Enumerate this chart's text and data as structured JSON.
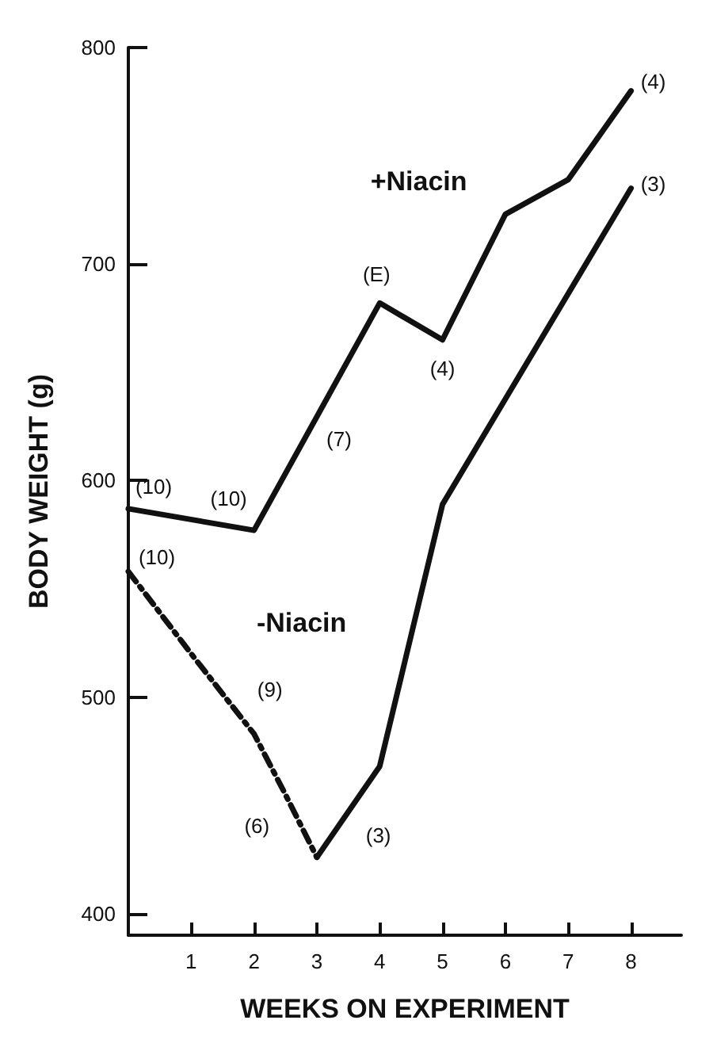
{
  "chart_data": {
    "type": "line",
    "xlabel": "WEEKS ON EXPERIMENT",
    "ylabel": "BODY WEIGHT (g)",
    "xlim": [
      0,
      8.8
    ],
    "xticks": [
      1,
      2,
      3,
      4,
      5,
      6,
      7,
      8
    ],
    "ylim": [
      390,
      800
    ],
    "yticks": [
      400,
      500,
      600,
      700,
      800
    ],
    "grid": false,
    "legend": false,
    "marker": "none",
    "series": [
      {
        "name": "+Niacin",
        "color": "#111111",
        "line_style": "solid",
        "x": [
          0,
          2,
          4,
          5,
          6,
          7,
          8
        ],
        "values": [
          587,
          577,
          682,
          665,
          723,
          739,
          780
        ]
      },
      {
        "name": "-Niacin",
        "color": "#111111",
        "line_style": "dashed",
        "x": [
          0,
          1,
          2,
          2.5,
          3
        ],
        "values": [
          558,
          520,
          483,
          455,
          426
        ]
      },
      {
        "color": "#111111",
        "line_style": "solid",
        "x": [
          3,
          4,
          5,
          8
        ],
        "values": [
          426,
          468,
          589,
          735
        ]
      }
    ],
    "annotations": [
      {
        "text": "(10)",
        "x": 0,
        "y": 587
      },
      {
        "text": "(10)",
        "x": 2,
        "y": 577
      },
      {
        "text": "(7)",
        "x": 3,
        "y": 629.5
      },
      {
        "text": "(E)",
        "x": 4,
        "y": 682
      },
      {
        "text": "(4)",
        "x": 5,
        "y": 665
      },
      {
        "text": "(4)",
        "x": 8,
        "y": 780
      },
      {
        "text": "(3)",
        "x": 8,
        "y": 735
      },
      {
        "text": "(10)",
        "x": 0,
        "y": 558
      },
      {
        "text": "(9)",
        "x": 2,
        "y": 483
      },
      {
        "text": "(6)",
        "x": 2.5,
        "y": 455
      },
      {
        "text": "(3)",
        "x": 3.5,
        "y": 447
      }
    ]
  }
}
